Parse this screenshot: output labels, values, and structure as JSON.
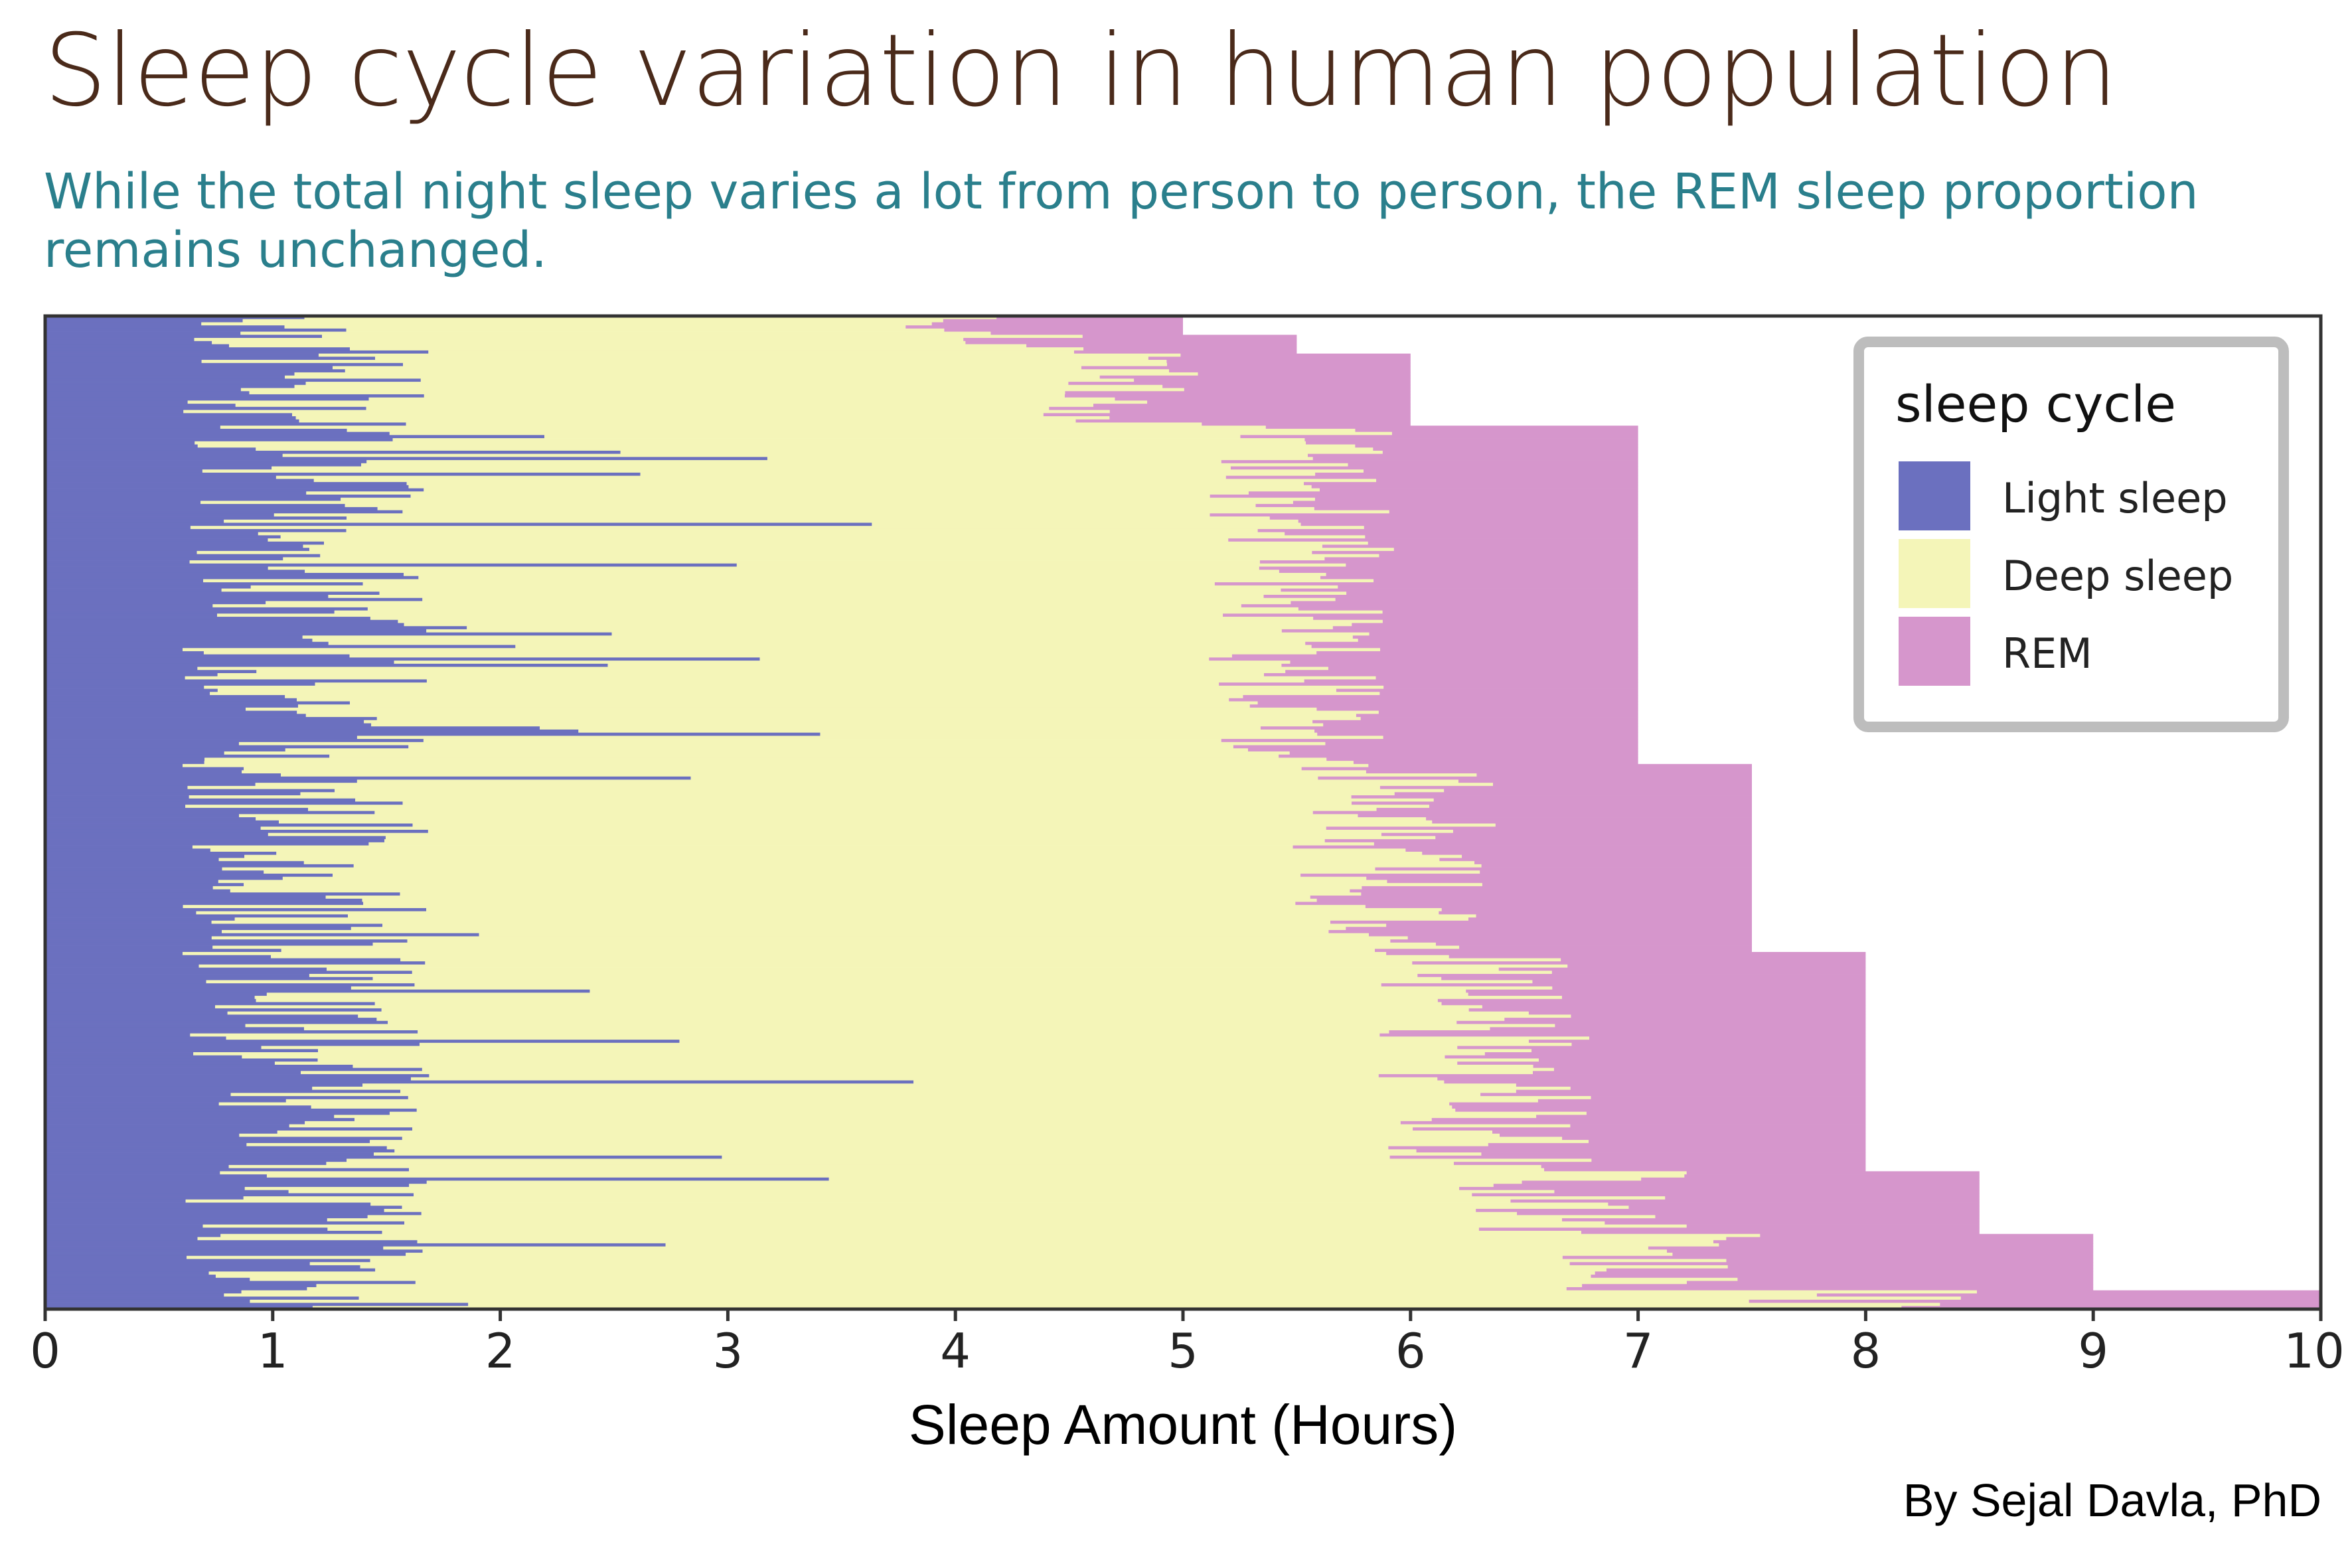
{
  "header": {
    "title": "Sleep cycle variation in human population",
    "subtitle": "While the total night sleep varies a lot from person to person, the REM sleep proportion remains unchanged."
  },
  "caption": "By Sejal Davla, PhD",
  "colors": {
    "light": "#6b70bf",
    "deep": "#f4f5b8",
    "rem": "#d696cc",
    "title": "#4a2a1a",
    "subtitle": "#2a7f8c",
    "legend_border": "#bdbdbd"
  },
  "chart_data": {
    "type": "bar",
    "orientation": "horizontal",
    "stacked": true,
    "title": "",
    "xlabel": "Sleep Amount (Hours)",
    "ylabel": "",
    "xlim": [
      0,
      10
    ],
    "x_ticks": [
      "0",
      "1",
      "2",
      "3",
      "4",
      "5",
      "6",
      "7",
      "8",
      "9",
      "10"
    ],
    "legend": {
      "title": "sleep cycle",
      "placement": "top-right",
      "entries": [
        "Light sleep",
        "Deep sleep",
        "REM"
      ]
    },
    "series_order": [
      "Light sleep",
      "Deep sleep",
      "REM"
    ],
    "total_sleep_groups": [
      {
        "total": 5.0,
        "count": 6
      },
      {
        "total": 5.5,
        "count": 6
      },
      {
        "total": 6.0,
        "count": 23
      },
      {
        "total": 7.0,
        "count": 108
      },
      {
        "total": 7.5,
        "count": 60
      },
      {
        "total": 8.0,
        "count": 70
      },
      {
        "total": 8.5,
        "count": 20
      },
      {
        "total": 9.0,
        "count": 18
      },
      {
        "total": 10.0,
        "count": 6
      }
    ],
    "rem_proportion_approx": 0.21,
    "light_sleep_range_hours": [
      0.6,
      1.7
    ],
    "deep_sleep_range_hours": [
      2.2,
      4.8
    ],
    "n_people": 317
  }
}
